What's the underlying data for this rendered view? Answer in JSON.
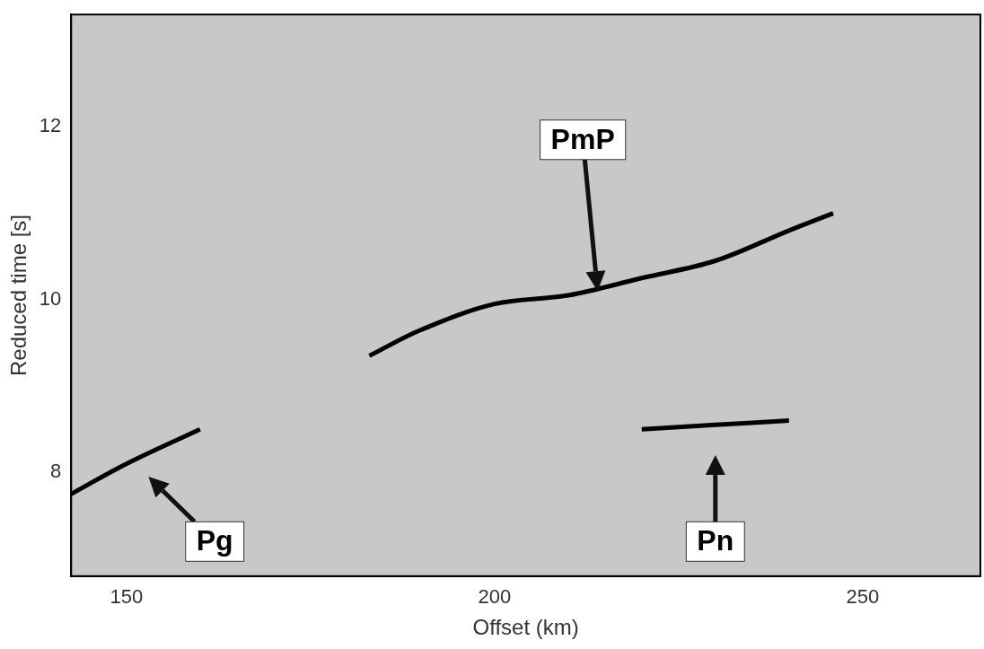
{
  "chart_data": {
    "type": "line",
    "x_label": "Offset (km)",
    "y_label": "Reduced time [s]",
    "xlim": [
      142.5,
      266
    ],
    "xticks": [
      150,
      200,
      250
    ],
    "ylim": [
      6.8,
      13.3
    ],
    "yticks": [
      8,
      10,
      12
    ],
    "grid": false,
    "series": [
      {
        "name": "PmP",
        "color": "#000000",
        "line_style": "solid",
        "x": [
          183,
          190,
          200,
          210,
          220,
          230,
          240,
          246
        ],
        "values": [
          9.35,
          9.65,
          9.95,
          10.05,
          10.25,
          10.45,
          10.8,
          11.0
        ]
      },
      {
        "name": "Pg",
        "color": "#000000",
        "line_style": "solid",
        "x": [
          142.5,
          150,
          160
        ],
        "values": [
          7.75,
          8.1,
          8.5
        ]
      },
      {
        "name": "Pn",
        "color": "#000000",
        "line_style": "solid",
        "x": [
          220,
          230,
          240
        ],
        "values": [
          8.5,
          8.55,
          8.6
        ]
      }
    ],
    "annotations": [
      {
        "text": "PmP",
        "x": 212,
        "y": 11.85,
        "arrow_to": [
          214,
          10.1
        ]
      },
      {
        "text": "Pg",
        "x": 162,
        "y": 7.2,
        "arrow_to": [
          153,
          7.95
        ]
      },
      {
        "text": "Pn",
        "x": 230,
        "y": 7.2,
        "arrow_to": [
          230,
          8.2
        ]
      }
    ]
  }
}
